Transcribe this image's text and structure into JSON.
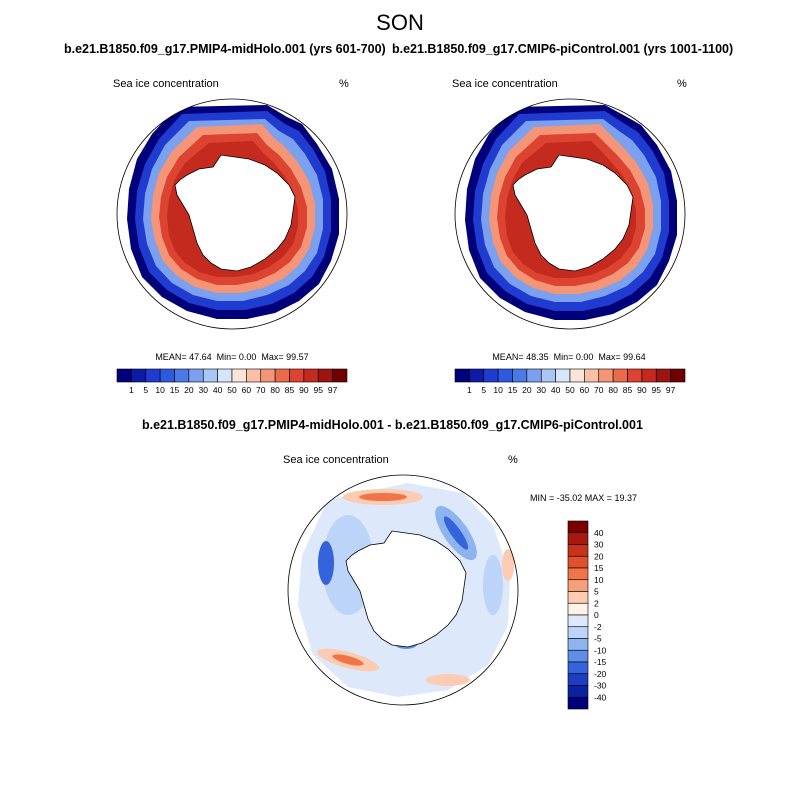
{
  "figure": {
    "season": "SON"
  },
  "panels": [
    {
      "run_title": "b.e21.B1850.f09_g17.PMIP4-midHolo.001 (yrs 601-700)",
      "field_label": "Sea ice concentration",
      "units": "%",
      "stats": {
        "mean": "MEAN=  47.64",
        "min": "Min=   0.00",
        "max": "Max=  99.57"
      }
    },
    {
      "run_title": "b.e21.B1850.f09_g17.CMIP6-piControl.001 (yrs 1001-1100)",
      "field_label": "Sea ice concentration",
      "units": "%",
      "stats": {
        "mean": "MEAN=  48.35",
        "min": "Min=   0.00",
        "max": "Max=  99.64"
      }
    }
  ],
  "colorbar_abs": {
    "labels": [
      "1",
      "5",
      "10",
      "15",
      "20",
      "30",
      "40",
      "50",
      "60",
      "70",
      "80",
      "85",
      "90",
      "95",
      "97"
    ],
    "colors": [
      "#00007a",
      "#0c1aa6",
      "#1f3bd0",
      "#2d5be0",
      "#4a7ae6",
      "#7aa0ee",
      "#a9c6f4",
      "#d6e6fa",
      "#fbe4d8",
      "#f9c0a6",
      "#f49577",
      "#ec6a4c",
      "#dc4330",
      "#c42a1e",
      "#9c1510",
      "#700000"
    ]
  },
  "difference_panel": {
    "title": "b.e21.B1850.f09_g17.PMIP4-midHolo.001 - b.e21.B1850.f09_g17.CMIP6-piControl.001",
    "field_label": "Sea ice concentration",
    "units": "%",
    "stats": "MIN = -35.02 MAX =  19.37"
  },
  "colorbar_diff": {
    "labels": [
      "40",
      "30",
      "20",
      "15",
      "10",
      "5",
      "2",
      "0",
      "-2",
      "-5",
      "-10",
      "-15",
      "-20",
      "-30",
      "-40"
    ],
    "colors": [
      "#7a0000",
      "#a8180e",
      "#c8321c",
      "#e0502c",
      "#f07448",
      "#f6a07a",
      "#fbcbb2",
      "#fdf1ea",
      "#dde9fb",
      "#bcd4f7",
      "#8eb4f0",
      "#5f8de8",
      "#3563dc",
      "#1b3ec4",
      "#0a22a0",
      "#00007a"
    ]
  }
}
